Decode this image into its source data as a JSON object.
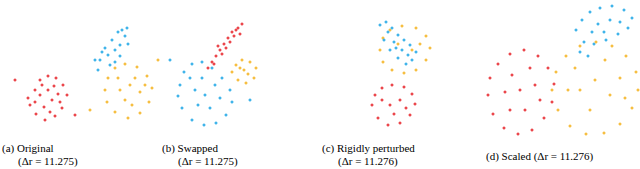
{
  "chart_data": [
    {
      "type": "scatter",
      "title": "(a) Original",
      "subtitle": "(Δr = 11.275)",
      "xlim": [
        0,
        160
      ],
      "ylim": [
        0,
        140
      ],
      "tick_labels": false,
      "grid": false,
      "marker": "circle",
      "series": [
        {
          "color": "#e8262b",
          "values": [
            [
              30,
              35
            ],
            [
              35,
              50
            ],
            [
              40,
              60
            ],
            [
              48,
              64
            ],
            [
              56,
              62
            ],
            [
              63,
              55
            ],
            [
              67,
              45
            ],
            [
              62,
              32
            ],
            [
              55,
              24
            ],
            [
              45,
              20
            ],
            [
              36,
              26
            ],
            [
              28,
              42
            ],
            [
              40,
              45
            ],
            [
              48,
              50
            ],
            [
              52,
              40
            ],
            [
              44,
              33
            ],
            [
              58,
              46
            ],
            [
              35,
              38
            ],
            [
              50,
              28
            ],
            [
              60,
              38
            ],
            [
              42,
              55
            ],
            [
              54,
              54
            ],
            [
              15,
              60
            ],
            [
              75,
              25
            ]
          ]
        },
        {
          "color": "#f5b320",
          "values": [
            [
              105,
              50
            ],
            [
              108,
              62
            ],
            [
              115,
              72
            ],
            [
              125,
              76
            ],
            [
              137,
              73
            ],
            [
              147,
              64
            ],
            [
              152,
              52
            ],
            [
              149,
              38
            ],
            [
              140,
              27
            ],
            [
              128,
              22
            ],
            [
              115,
              28
            ],
            [
              107,
              38
            ],
            [
              120,
              50
            ],
            [
              130,
              55
            ],
            [
              140,
              48
            ],
            [
              125,
              40
            ],
            [
              135,
              62
            ],
            [
              118,
              62
            ],
            [
              145,
              55
            ],
            [
              132,
              35
            ],
            [
              90,
              30
            ],
            [
              158,
              80
            ]
          ]
        },
        {
          "color": "#1ea7e6",
          "values": [
            [
              100,
              80
            ],
            [
              108,
              85
            ],
            [
              115,
              90
            ],
            [
              120,
              95
            ],
            [
              110,
              75
            ],
            [
              98,
              70
            ],
            [
              105,
              92
            ],
            [
              112,
              100
            ],
            [
              118,
              108
            ],
            [
              125,
              104
            ],
            [
              128,
              96
            ],
            [
              95,
              80
            ],
            [
              102,
              88
            ],
            [
              120,
              84
            ],
            [
              115,
              78
            ],
            [
              122,
              110
            ],
            [
              127,
              112
            ]
          ]
        }
      ]
    },
    {
      "type": "scatter",
      "title": "(b) Swapped",
      "subtitle": "(Δr = 11.275)",
      "xlim": [
        0,
        160
      ],
      "ylim": [
        0,
        140
      ],
      "tick_labels": false,
      "grid": false,
      "marker": "circle",
      "series": [
        {
          "color": "#1ea7e6",
          "values": [
            [
              20,
              55
            ],
            [
              24,
              68
            ],
            [
              32,
              76
            ],
            [
              42,
              78
            ],
            [
              52,
              72
            ],
            [
              62,
              62
            ],
            [
              70,
              50
            ],
            [
              72,
              38
            ],
            [
              66,
              25
            ],
            [
              56,
              17
            ],
            [
              44,
              15
            ],
            [
              32,
              20
            ],
            [
              22,
              32
            ],
            [
              18,
              44
            ],
            [
              35,
              50
            ],
            [
              45,
              45
            ],
            [
              55,
              55
            ],
            [
              50,
              32
            ],
            [
              38,
              35
            ],
            [
              60,
              42
            ],
            [
              30,
              62
            ],
            [
              42,
              62
            ],
            [
              10,
              80
            ],
            [
              90,
              40
            ]
          ]
        },
        {
          "color": "#f5b320",
          "values": [
            [
              72,
              68
            ],
            [
              76,
              75
            ],
            [
              82,
              80
            ],
            [
              90,
              78
            ],
            [
              96,
              72
            ],
            [
              94,
              62
            ],
            [
              86,
              57
            ],
            [
              78,
              60
            ],
            [
              84,
              70
            ],
            [
              88,
              66
            ],
            [
              80,
              72
            ]
          ]
        },
        {
          "color": "#e8262b",
          "values": [
            [
              48,
              72
            ],
            [
              52,
              78
            ],
            [
              56,
              84
            ],
            [
              60,
              90
            ],
            [
              64,
              96
            ],
            [
              68,
              102
            ],
            [
              72,
              108
            ],
            [
              78,
              112
            ],
            [
              82,
              116
            ],
            [
              62,
              86
            ],
            [
              66,
              92
            ],
            [
              58,
              94
            ],
            [
              70,
              98
            ],
            [
              74,
              104
            ],
            [
              54,
              76
            ],
            [
              76,
              110
            ],
            [
              80,
              106
            ]
          ]
        }
      ]
    },
    {
      "type": "scatter",
      "title": "(c) Rigidly perturbed",
      "subtitle": "(Δr = 11.276)",
      "xlim": [
        0,
        160
      ],
      "ylim": [
        0,
        140
      ],
      "tick_labels": false,
      "grid": false,
      "marker": "circle",
      "series": [
        {
          "color": "#e8262b",
          "values": [
            [
              52,
              35
            ],
            [
              55,
              45
            ],
            [
              62,
              52
            ],
            [
              72,
              55
            ],
            [
              84,
              53
            ],
            [
              92,
              46
            ],
            [
              95,
              36
            ],
            [
              90,
              25
            ],
            [
              80,
              17
            ],
            [
              68,
              15
            ],
            [
              58,
              22
            ],
            [
              70,
              35
            ],
            [
              80,
              40
            ],
            [
              74,
              26
            ],
            [
              62,
              40
            ],
            [
              86,
              32
            ]
          ]
        },
        {
          "color": "#f5b320",
          "values": [
            [
              60,
              90
            ],
            [
              63,
              102
            ],
            [
              70,
              110
            ],
            [
              82,
              114
            ],
            [
              96,
              112
            ],
            [
              106,
              104
            ],
            [
              110,
              92
            ],
            [
              106,
              80
            ],
            [
              96,
              70
            ],
            [
              84,
              67
            ],
            [
              72,
              70
            ],
            [
              63,
              78
            ],
            [
              78,
              96
            ],
            [
              92,
              90
            ],
            [
              100,
              96
            ]
          ]
        },
        {
          "color": "#1ea7e6",
          "values": [
            [
              60,
              115
            ],
            [
              66,
              118
            ],
            [
              72,
              112
            ],
            [
              78,
              105
            ],
            [
              84,
              100
            ],
            [
              90,
              95
            ],
            [
              96,
              88
            ],
            [
              92,
              80
            ],
            [
              86,
              76
            ],
            [
              78,
              82
            ],
            [
              70,
              90
            ],
            [
              64,
              100
            ],
            [
              74,
              98
            ],
            [
              82,
              90
            ],
            [
              68,
              108
            ],
            [
              88,
              85
            ],
            [
              76,
              92
            ]
          ]
        }
      ]
    },
    {
      "type": "scatter",
      "title": "(d) Scaled (Δr = 11.276)",
      "xlim": [
        0,
        160
      ],
      "ylim": [
        0,
        140
      ],
      "tick_labels": false,
      "grid": false,
      "marker": "circle",
      "series": [
        {
          "color": "#e8262b",
          "values": [
            [
              8,
              45
            ],
            [
              10,
              62
            ],
            [
              18,
              76
            ],
            [
              30,
              86
            ],
            [
              44,
              90
            ],
            [
              58,
              84
            ],
            [
              68,
              72
            ],
            [
              74,
              56
            ],
            [
              72,
              38
            ],
            [
              64,
              22
            ],
            [
              52,
              10
            ],
            [
              38,
              6
            ],
            [
              24,
              12
            ],
            [
              13,
              26
            ],
            [
              25,
              48
            ],
            [
              40,
              50
            ],
            [
              55,
              55
            ],
            [
              45,
              30
            ],
            [
              32,
              65
            ],
            [
              60,
              40
            ],
            [
              30,
              30
            ],
            [
              50,
              72
            ]
          ]
        },
        {
          "color": "#1ea7e6",
          "values": [
            [
              96,
              110
            ],
            [
              102,
              120
            ],
            [
              110,
              128
            ],
            [
              120,
              132
            ],
            [
              132,
              134
            ],
            [
              144,
              130
            ],
            [
              152,
              122
            ],
            [
              148,
              112
            ],
            [
              138,
              106
            ],
            [
              126,
              100
            ],
            [
              114,
              96
            ],
            [
              104,
              98
            ],
            [
              118,
              116
            ],
            [
              130,
              120
            ],
            [
              140,
              118
            ],
            [
              124,
              108
            ],
            [
              112,
              108
            ],
            [
              100,
              88
            ],
            [
              108,
              84
            ]
          ]
        },
        {
          "color": "#f5b320",
          "values": [
            [
              72,
              50
            ],
            [
              76,
              68
            ],
            [
              86,
              84
            ],
            [
              100,
              94
            ],
            [
              116,
              98
            ],
            [
              132,
              94
            ],
            [
              146,
              84
            ],
            [
              156,
              68
            ],
            [
              158,
              50
            ],
            [
              152,
              32
            ],
            [
              140,
              16
            ],
            [
              124,
              7
            ],
            [
              106,
              6
            ],
            [
              90,
              14
            ],
            [
              78,
              30
            ],
            [
              100,
              50
            ],
            [
              115,
              60
            ],
            [
              130,
              45
            ],
            [
              110,
              30
            ],
            [
              140,
              62
            ],
            [
              95,
              72
            ],
            [
              125,
              80
            ],
            [
              145,
              42
            ],
            [
              88,
              50
            ]
          ]
        }
      ]
    }
  ]
}
